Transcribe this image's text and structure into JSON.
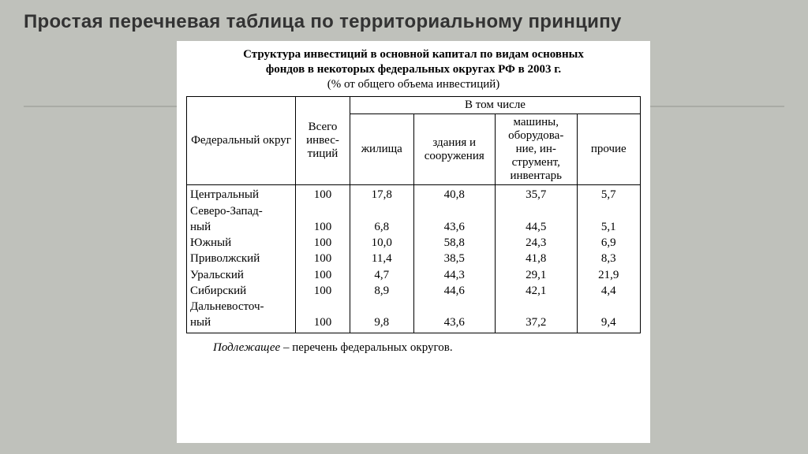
{
  "slide": {
    "title": "Простая перечневая таблица по территориальному принципу",
    "title_color": "#333333",
    "title_fontsize_pt": 18,
    "background_color": "#bfc1bb",
    "hr_color": "#a9aba5"
  },
  "paper": {
    "background_color": "#ffffff",
    "caption_bold_line1": "Структура инвестиций в основной капитал по видам основных",
    "caption_bold_line2": "фондов в некоторых федеральных округах РФ в 2003 г.",
    "caption_sub": "(% от общего объема инвестиций)",
    "footnote_em": "Подлежащее",
    "footnote_rest": " – перечень федеральных округов."
  },
  "table": {
    "type": "table",
    "border_color": "#000000",
    "font_family": "Times New Roman",
    "fontsize_pt": 11,
    "header": {
      "col0": "Федеральный округ",
      "col1": "Всего инвес-тиций",
      "group": "В том числе",
      "sub1": "жилища",
      "sub2": "здания и сооружения",
      "sub3": "машины, оборудова-ние, ин-струмент, инвентарь",
      "sub4": "прочие"
    },
    "column_widths_pct": [
      24,
      12,
      14,
      18,
      18,
      14
    ],
    "row_labels": [
      "Центральный",
      "Северо-Запад-",
      "ный",
      "Южный",
      "Приволжский",
      "Уральский",
      "Сибирский",
      "Дальневосточ-",
      "ный"
    ],
    "columns_text": {
      "total": "100\n\n100\n100\n100\n100\n100\n\n100",
      "housing": "17,8\n\n6,8\n10,0\n11,4\n4,7\n8,9\n\n9,8",
      "bldg": "40,8\n\n43,6\n58,8\n38,5\n44,3\n44,6\n\n43,6",
      "mach": "35,7\n\n44,5\n24,3\n41,8\n29,1\n42,1\n\n37,2",
      "other": "5,7\n\n5,1\n6,9\n8,3\n21,9\n4,4\n\n9,4"
    },
    "rows": [
      {
        "label": "Центральный",
        "total": 100,
        "housing": "17,8",
        "bldg": "40,8",
        "mach": "35,7",
        "other": "5,7"
      },
      {
        "label": "Северо-Западный",
        "total": 100,
        "housing": "6,8",
        "bldg": "43,6",
        "mach": "44,5",
        "other": "5,1"
      },
      {
        "label": "Южный",
        "total": 100,
        "housing": "10,0",
        "bldg": "58,8",
        "mach": "24,3",
        "other": "6,9"
      },
      {
        "label": "Приволжский",
        "total": 100,
        "housing": "11,4",
        "bldg": "38,5",
        "mach": "41,8",
        "other": "8,3"
      },
      {
        "label": "Уральский",
        "total": 100,
        "housing": "4,7",
        "bldg": "44,3",
        "mach": "29,1",
        "other": "21,9"
      },
      {
        "label": "Сибирский",
        "total": 100,
        "housing": "8,9",
        "bldg": "44,6",
        "mach": "42,1",
        "other": "4,4"
      },
      {
        "label": "Дальневосточный",
        "total": 100,
        "housing": "9,8",
        "bldg": "43,6",
        "mach": "37,2",
        "other": "9,4"
      }
    ]
  }
}
